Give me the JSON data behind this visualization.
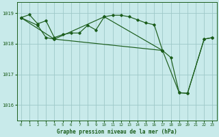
{
  "background_color": "#c8eaea",
  "line_color": "#1a5c1a",
  "grid_color": "#9ec8c8",
  "title": "Graphe pression niveau de la mer (hPa)",
  "xlim": [
    -0.5,
    23.5
  ],
  "ylim": [
    1015.5,
    1019.35
  ],
  "yticks": [
    1016,
    1017,
    1018,
    1019
  ],
  "xticks": [
    0,
    1,
    2,
    3,
    4,
    5,
    6,
    7,
    8,
    9,
    10,
    11,
    12,
    13,
    14,
    15,
    16,
    17,
    18,
    19,
    20,
    21,
    22,
    23
  ],
  "series1_x": [
    0,
    1,
    2,
    3,
    4,
    5,
    6,
    7,
    8,
    9,
    10,
    11,
    12,
    13,
    14,
    15,
    16,
    17,
    18,
    19,
    20,
    22,
    23
  ],
  "series1_y": [
    1018.85,
    1018.95,
    1018.65,
    1018.75,
    1018.2,
    1018.3,
    1018.35,
    1018.35,
    1018.6,
    1018.45,
    1018.88,
    1018.93,
    1018.93,
    1018.88,
    1018.78,
    1018.68,
    1018.62,
    1017.78,
    1017.55,
    1016.4,
    1016.38,
    1018.15,
    1018.2
  ],
  "series2_x": [
    0,
    2,
    3,
    4,
    17,
    19,
    20,
    22,
    23
  ],
  "series2_y": [
    1018.85,
    1018.6,
    1018.2,
    1018.15,
    1017.78,
    1016.4,
    1016.38,
    1018.15,
    1018.2
  ],
  "series3_x": [
    0,
    4,
    10,
    17
  ],
  "series3_y": [
    1018.85,
    1018.15,
    1018.88,
    1017.78
  ]
}
